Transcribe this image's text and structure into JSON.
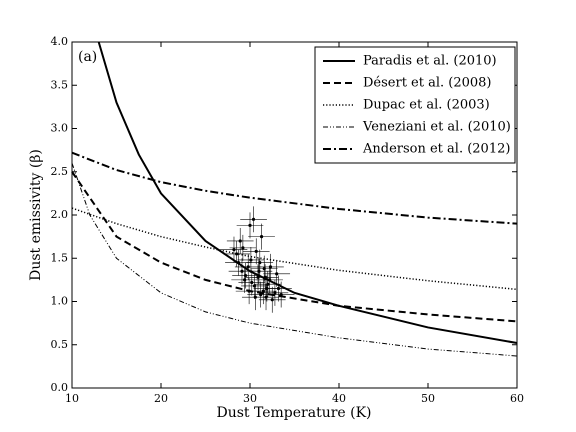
{
  "chart_data": {
    "type": "line",
    "annotation": "(a)",
    "xlabel": "Dust Temperature (K)",
    "ylabel": "Dust emissivity (β)",
    "xlim": [
      10,
      60
    ],
    "xticks": [
      10,
      20,
      30,
      40,
      50,
      60
    ],
    "ylim": [
      0,
      4.0
    ],
    "yticks": [
      {
        "value": 0,
        "label": "0.0"
      },
      0.5,
      {
        "value": 1,
        "label": "1.0"
      },
      1.5,
      {
        "value": 2,
        "label": "2.0"
      },
      2.5,
      {
        "value": 3,
        "label": "3.0"
      },
      3.5,
      {
        "value": 4,
        "label": "4.0"
      }
    ],
    "legend": "upper right",
    "series": [
      {
        "name": "Paradis et al. (2010)",
        "color": "#000000",
        "dash": "solid",
        "x": [
          13,
          15,
          17.5,
          20,
          25,
          30,
          35,
          40,
          50,
          60
        ],
        "values": [
          4.0,
          3.3,
          2.7,
          2.25,
          1.7,
          1.35,
          1.1,
          0.95,
          0.7,
          0.52
        ]
      },
      {
        "name": "Désert et al. (2008)",
        "color": "#000000",
        "dash": "dashed",
        "x": [
          10,
          15,
          20,
          25,
          30,
          40,
          50,
          60
        ],
        "values": [
          2.5,
          1.75,
          1.45,
          1.25,
          1.12,
          0.95,
          0.85,
          0.77
        ]
      },
      {
        "name": "Dupac et al. (2003)",
        "color": "#000000",
        "dash": "dotted",
        "x": [
          10,
          15,
          20,
          25,
          30,
          40,
          50,
          60
        ],
        "values": [
          2.08,
          1.9,
          1.75,
          1.63,
          1.52,
          1.36,
          1.24,
          1.14
        ]
      },
      {
        "name": "Veneziani et al. (2010)",
        "color": "#000000",
        "dash": "dashdotdot",
        "x": [
          10,
          12,
          15,
          20,
          25,
          30,
          40,
          50,
          60
        ],
        "values": [
          2.6,
          2.0,
          1.5,
          1.1,
          0.88,
          0.75,
          0.58,
          0.45,
          0.37
        ]
      },
      {
        "name": "Anderson et al. (2012)",
        "color": "#000000",
        "dash": "dashdot",
        "x": [
          10,
          15,
          20,
          25,
          30,
          40,
          50,
          60
        ],
        "values": [
          2.72,
          2.52,
          2.38,
          2.28,
          2.2,
          2.07,
          1.97,
          1.9
        ]
      }
    ],
    "scatter": {
      "color": "#000000",
      "x": [
        28.5,
        29.2,
        30.1,
        31.0,
        32.2,
        29.8,
        30.5,
        31.5,
        32.8,
        28.9,
        30.9,
        31.8,
        33.2,
        29.5,
        30.2,
        31.2,
        32.0,
        33.0,
        28.7,
        30.7,
        31.6,
        29.9,
        31.3,
        32.5,
        30.0,
        31.1,
        29.4,
        32.3,
        30.6,
        31.9,
        28.2,
        33.5,
        30.4,
        29.1,
        31.7
      ],
      "values": [
        1.55,
        1.62,
        1.48,
        1.35,
        1.25,
        1.4,
        1.18,
        1.12,
        1.1,
        1.7,
        1.28,
        1.05,
        1.15,
        1.3,
        1.22,
        1.08,
        1.2,
        1.32,
        1.45,
        1.58,
        1.38,
        1.12,
        1.75,
        1.02,
        1.88,
        1.45,
        1.25,
        1.4,
        1.05,
        1.15,
        1.6,
        1.08,
        1.95,
        1.35,
        1.28
      ],
      "xerr": 1.5,
      "yerr": 0.15
    }
  }
}
